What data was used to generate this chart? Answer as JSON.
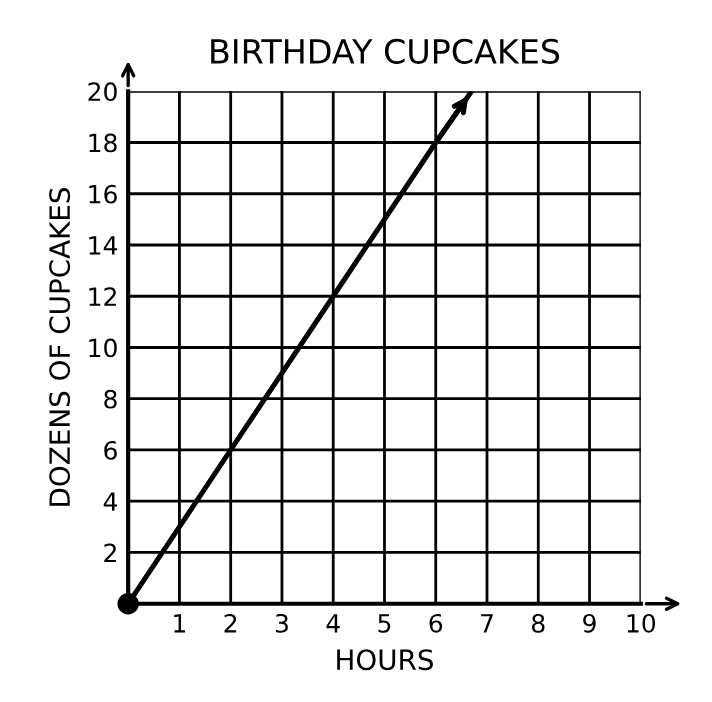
{
  "chart_data": {
    "type": "line",
    "title": "BIRTHDAY CUPCAKES",
    "xlabel": "HOURS",
    "ylabel": "DOZENS OF CUPCAKES",
    "xlim": [
      0,
      10
    ],
    "ylim": [
      0,
      20
    ],
    "xticks": [
      {
        "value": 0,
        "label": null
      },
      1,
      2,
      3,
      4,
      5,
      6,
      7,
      8,
      9,
      10
    ],
    "yticks": [
      {
        "value": 0,
        "label": null
      },
      2,
      4,
      6,
      8,
      10,
      12,
      14,
      16,
      18,
      20
    ],
    "grid": true,
    "legend": false,
    "series": [
      {
        "color": "#000000",
        "x": [
          0,
          2,
          4,
          6,
          6.7
        ],
        "values": [
          0,
          6,
          12,
          18,
          20
        ],
        "marker": "none"
      },
      {
        "type": "scatter",
        "color": "#000000",
        "x": [
          0
        ],
        "values": [
          0
        ],
        "marker": "circle"
      }
    ]
  }
}
